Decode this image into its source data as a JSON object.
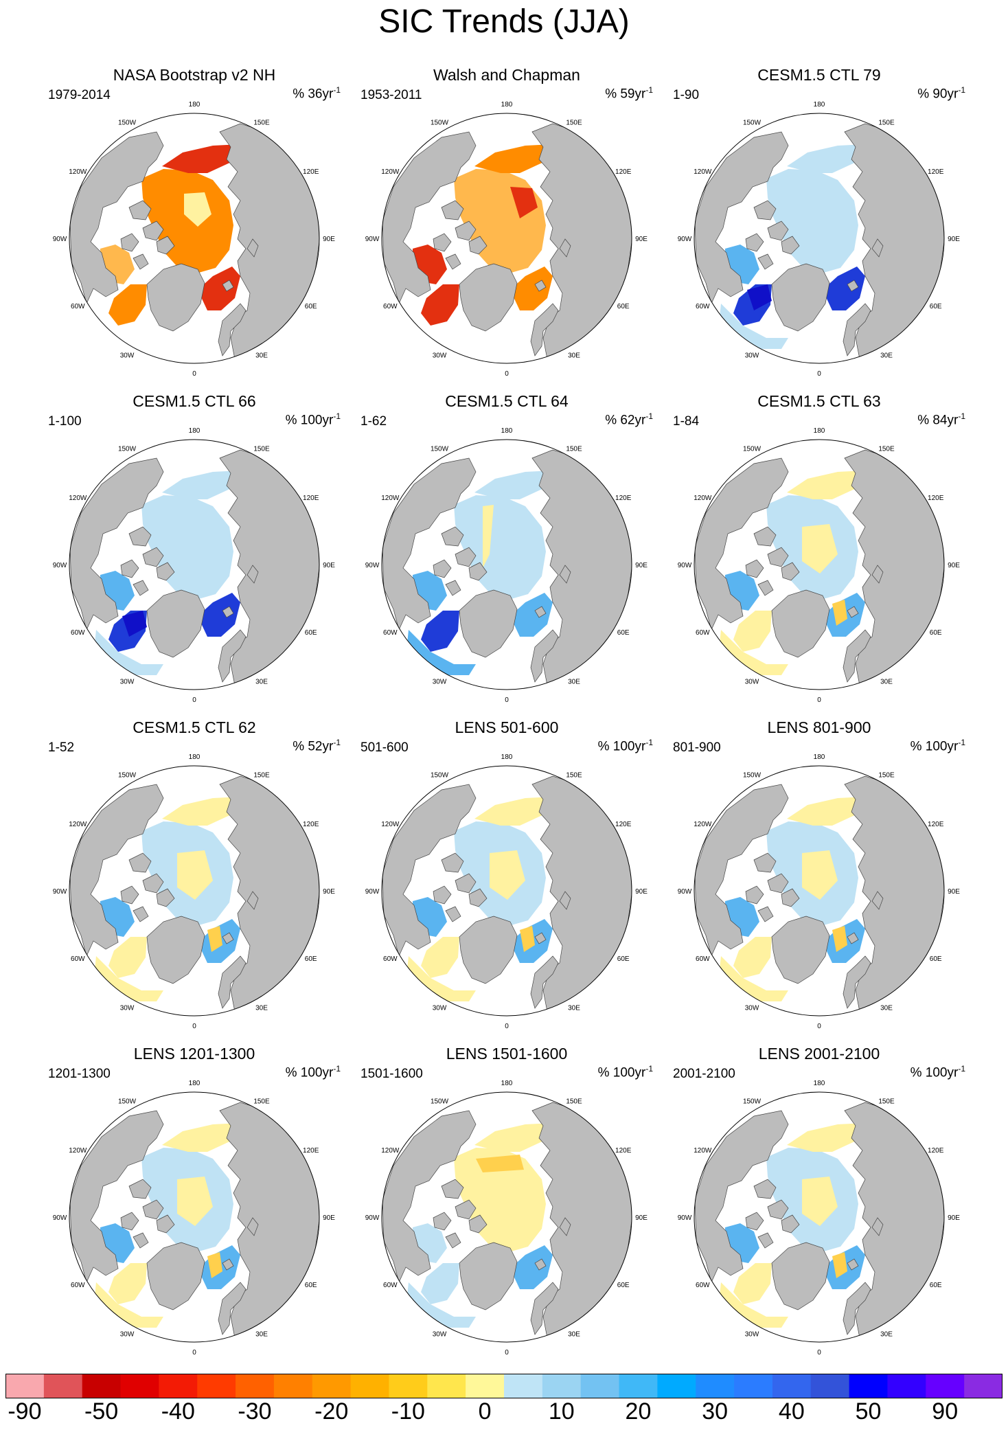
{
  "title": "SIC Trends (JJA)",
  "panels": [
    {
      "title": "NASA Bootstrap v2 NH",
      "period": "1979-2014",
      "pct": "% 36yr",
      "style": "obs1"
    },
    {
      "title": "Walsh and Chapman",
      "period": "1953-2011",
      "pct": "% 59yr",
      "style": "obs2"
    },
    {
      "title": "CESM1.5 CTL 79",
      "period": "1-90",
      "pct": "% 90yr",
      "style": "blue"
    },
    {
      "title": "CESM1.5 CTL 66",
      "period": "1-100",
      "pct": "% 100yr",
      "style": "blue"
    },
    {
      "title": "CESM1.5 CTL 64",
      "period": "1-62",
      "pct": "% 62yr",
      "style": "blue2"
    },
    {
      "title": "CESM1.5 CTL 63",
      "period": "1-84",
      "pct": "% 84yr",
      "style": "mixed"
    },
    {
      "title": "CESM1.5 CTL 62",
      "period": "1-52",
      "pct": "% 52yr",
      "style": "mixed"
    },
    {
      "title": "LENS 501-600",
      "period": "501-600",
      "pct": "% 100yr",
      "style": "mixed"
    },
    {
      "title": "LENS 801-900",
      "period": "801-900",
      "pct": "% 100yr",
      "style": "mixed"
    },
    {
      "title": "LENS 1201-1300",
      "period": "1201-1300",
      "pct": "% 100yr",
      "style": "mixed"
    },
    {
      "title": "LENS 1501-1600",
      "period": "1501-1600",
      "pct": "% 100yr",
      "style": "yellow"
    },
    {
      "title": "LENS 2001-2100",
      "period": "2001-2100",
      "pct": "% 100yr",
      "style": "mixed"
    }
  ],
  "pct_superscript": "-1",
  "lon_labels": {
    "n": "180",
    "nne": "150E",
    "ene": "120E",
    "e": "90E",
    "ese": "60E",
    "sse": "30E",
    "s": "0",
    "ssw": "30W",
    "wsw": "60W",
    "w": "90W",
    "wnw": "120W",
    "nnw": "150W"
  },
  "colorbar": {
    "colors": [
      "#f9a8ae",
      "#e05459",
      "#c80000",
      "#e00000",
      "#f31b05",
      "#ff3b00",
      "#ff6100",
      "#ff8000",
      "#ff9900",
      "#ffb100",
      "#ffcc1a",
      "#ffe64d",
      "#fff899",
      "#bfe4f6",
      "#9bd4f2",
      "#73c2f2",
      "#40b8f7",
      "#00aaff",
      "#1f8cff",
      "#2b7cff",
      "#3366ee",
      "#3353d9",
      "#0000ff",
      "#3300ff",
      "#6600ff",
      "#8a2be2"
    ],
    "labels": [
      "-90",
      "-50",
      "-40",
      "-30",
      "-20",
      "-10",
      "0",
      "10",
      "20",
      "30",
      "40",
      "50",
      "90"
    ]
  },
  "palette": {
    "land": "#bcbcbc",
    "ocean": "#ffffff",
    "red": "#e33010",
    "orange": "#ff8c00",
    "orange_light": "#ffb84d",
    "yellow": "#fff2a0",
    "yellow_deep": "#ffd04d",
    "blue_light": "#bfe2f4",
    "blue_mid": "#5ab4f0",
    "blue_deep": "#1f3cd8",
    "blue_dark": "#1010c8"
  }
}
